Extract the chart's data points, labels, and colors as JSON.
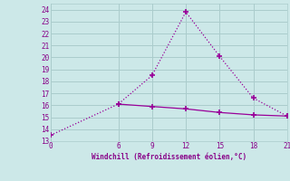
{
  "line1_x": [
    0,
    6,
    9,
    12,
    15,
    18,
    21
  ],
  "line1_y": [
    13.5,
    16.1,
    18.5,
    23.8,
    20.1,
    16.6,
    15.1
  ],
  "line2_x": [
    6,
    9,
    12,
    15,
    18,
    21
  ],
  "line2_y": [
    16.1,
    15.9,
    15.7,
    15.4,
    15.2,
    15.1
  ],
  "line_color": "#990099",
  "bg_color": "#cce8e8",
  "grid_color": "#aacccc",
  "xlabel": "Windchill (Refroidissement éolien,°C)",
  "xlabel_color": "#880088",
  "xticks": [
    0,
    6,
    9,
    12,
    15,
    18,
    21
  ],
  "yticks": [
    13,
    14,
    15,
    16,
    17,
    18,
    19,
    20,
    21,
    22,
    23,
    24
  ],
  "ylim": [
    13,
    24.5
  ],
  "xlim": [
    0,
    21
  ]
}
